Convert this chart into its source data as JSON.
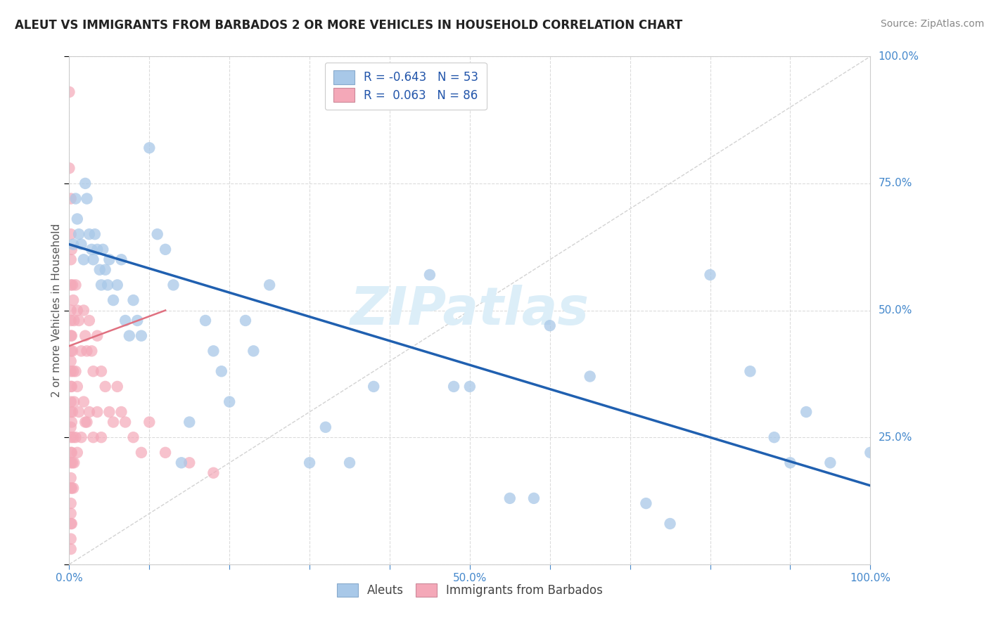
{
  "title": "ALEUT VS IMMIGRANTS FROM BARBADOS 2 OR MORE VEHICLES IN HOUSEHOLD CORRELATION CHART",
  "source": "Source: ZipAtlas.com",
  "ylabel": "2 or more Vehicles in Household",
  "xlim": [
    0,
    1
  ],
  "ylim": [
    0,
    1
  ],
  "aleut_R": -0.643,
  "aleut_N": 53,
  "barbados_R": 0.063,
  "barbados_N": 86,
  "aleut_color": "#a8c8e8",
  "barbados_color": "#f4a8b8",
  "aleut_line_color": "#2060b0",
  "barbados_line_color": "#e07080",
  "diagonal_color": "#c8c8c8",
  "watermark": "ZIPatlas",
  "watermark_color": "#dceef8",
  "aleut_scatter": [
    [
      0.005,
      0.63
    ],
    [
      0.008,
      0.72
    ],
    [
      0.01,
      0.68
    ],
    [
      0.012,
      0.65
    ],
    [
      0.015,
      0.63
    ],
    [
      0.018,
      0.6
    ],
    [
      0.02,
      0.75
    ],
    [
      0.022,
      0.72
    ],
    [
      0.025,
      0.65
    ],
    [
      0.028,
      0.62
    ],
    [
      0.03,
      0.6
    ],
    [
      0.032,
      0.65
    ],
    [
      0.035,
      0.62
    ],
    [
      0.038,
      0.58
    ],
    [
      0.04,
      0.55
    ],
    [
      0.042,
      0.62
    ],
    [
      0.045,
      0.58
    ],
    [
      0.048,
      0.55
    ],
    [
      0.05,
      0.6
    ],
    [
      0.055,
      0.52
    ],
    [
      0.06,
      0.55
    ],
    [
      0.065,
      0.6
    ],
    [
      0.07,
      0.48
    ],
    [
      0.075,
      0.45
    ],
    [
      0.08,
      0.52
    ],
    [
      0.085,
      0.48
    ],
    [
      0.09,
      0.45
    ],
    [
      0.1,
      0.82
    ],
    [
      0.11,
      0.65
    ],
    [
      0.12,
      0.62
    ],
    [
      0.13,
      0.55
    ],
    [
      0.14,
      0.2
    ],
    [
      0.15,
      0.28
    ],
    [
      0.17,
      0.48
    ],
    [
      0.18,
      0.42
    ],
    [
      0.19,
      0.38
    ],
    [
      0.2,
      0.32
    ],
    [
      0.22,
      0.48
    ],
    [
      0.23,
      0.42
    ],
    [
      0.25,
      0.55
    ],
    [
      0.3,
      0.2
    ],
    [
      0.32,
      0.27
    ],
    [
      0.35,
      0.2
    ],
    [
      0.38,
      0.35
    ],
    [
      0.45,
      0.57
    ],
    [
      0.48,
      0.35
    ],
    [
      0.5,
      0.35
    ],
    [
      0.55,
      0.13
    ],
    [
      0.58,
      0.13
    ],
    [
      0.6,
      0.47
    ],
    [
      0.65,
      0.37
    ],
    [
      0.72,
      0.12
    ],
    [
      0.75,
      0.08
    ],
    [
      0.8,
      0.57
    ],
    [
      0.85,
      0.38
    ],
    [
      0.88,
      0.25
    ],
    [
      0.9,
      0.2
    ],
    [
      0.92,
      0.3
    ],
    [
      0.95,
      0.2
    ],
    [
      1.0,
      0.22
    ]
  ],
  "barbados_scatter": [
    [
      0.0,
      0.93
    ],
    [
      0.0,
      0.78
    ],
    [
      0.002,
      0.72
    ],
    [
      0.002,
      0.65
    ],
    [
      0.002,
      0.6
    ],
    [
      0.002,
      0.55
    ],
    [
      0.002,
      0.5
    ],
    [
      0.002,
      0.48
    ],
    [
      0.002,
      0.45
    ],
    [
      0.002,
      0.42
    ],
    [
      0.002,
      0.4
    ],
    [
      0.002,
      0.38
    ],
    [
      0.002,
      0.35
    ],
    [
      0.002,
      0.32
    ],
    [
      0.002,
      0.3
    ],
    [
      0.002,
      0.27
    ],
    [
      0.002,
      0.25
    ],
    [
      0.002,
      0.22
    ],
    [
      0.002,
      0.2
    ],
    [
      0.002,
      0.17
    ],
    [
      0.002,
      0.15
    ],
    [
      0.002,
      0.12
    ],
    [
      0.002,
      0.1
    ],
    [
      0.002,
      0.08
    ],
    [
      0.002,
      0.05
    ],
    [
      0.002,
      0.03
    ],
    [
      0.003,
      0.62
    ],
    [
      0.003,
      0.45
    ],
    [
      0.003,
      0.35
    ],
    [
      0.003,
      0.28
    ],
    [
      0.003,
      0.22
    ],
    [
      0.003,
      0.15
    ],
    [
      0.003,
      0.08
    ],
    [
      0.004,
      0.55
    ],
    [
      0.004,
      0.42
    ],
    [
      0.004,
      0.3
    ],
    [
      0.004,
      0.2
    ],
    [
      0.005,
      0.52
    ],
    [
      0.005,
      0.38
    ],
    [
      0.005,
      0.25
    ],
    [
      0.005,
      0.15
    ],
    [
      0.006,
      0.48
    ],
    [
      0.006,
      0.32
    ],
    [
      0.006,
      0.2
    ],
    [
      0.008,
      0.55
    ],
    [
      0.008,
      0.38
    ],
    [
      0.008,
      0.25
    ],
    [
      0.01,
      0.5
    ],
    [
      0.01,
      0.35
    ],
    [
      0.01,
      0.22
    ],
    [
      0.012,
      0.48
    ],
    [
      0.012,
      0.3
    ],
    [
      0.015,
      0.42
    ],
    [
      0.015,
      0.25
    ],
    [
      0.018,
      0.5
    ],
    [
      0.018,
      0.32
    ],
    [
      0.02,
      0.45
    ],
    [
      0.02,
      0.28
    ],
    [
      0.022,
      0.42
    ],
    [
      0.022,
      0.28
    ],
    [
      0.025,
      0.48
    ],
    [
      0.025,
      0.3
    ],
    [
      0.028,
      0.42
    ],
    [
      0.03,
      0.38
    ],
    [
      0.03,
      0.25
    ],
    [
      0.035,
      0.45
    ],
    [
      0.035,
      0.3
    ],
    [
      0.04,
      0.38
    ],
    [
      0.04,
      0.25
    ],
    [
      0.045,
      0.35
    ],
    [
      0.05,
      0.3
    ],
    [
      0.055,
      0.28
    ],
    [
      0.06,
      0.35
    ],
    [
      0.065,
      0.3
    ],
    [
      0.07,
      0.28
    ],
    [
      0.08,
      0.25
    ],
    [
      0.09,
      0.22
    ],
    [
      0.1,
      0.28
    ],
    [
      0.12,
      0.22
    ],
    [
      0.15,
      0.2
    ],
    [
      0.18,
      0.18
    ]
  ],
  "aleut_line": [
    0.0,
    1.0,
    0.63,
    0.155
  ],
  "barbados_line": [
    0.0,
    0.12,
    0.43,
    0.5
  ]
}
